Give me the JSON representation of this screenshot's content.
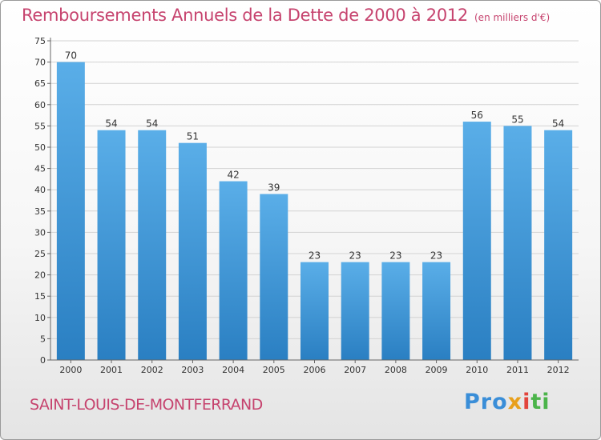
{
  "chart_data": {
    "type": "bar",
    "title": "Remboursements Annuels de la Dette de 2000 à 2012",
    "unit_note": "(en milliers d'€)",
    "categories": [
      "2000",
      "2001",
      "2002",
      "2003",
      "2004",
      "2005",
      "2006",
      "2007",
      "2008",
      "2009",
      "2010",
      "2011",
      "2012"
    ],
    "values": [
      70,
      54,
      54,
      51,
      42,
      39,
      23,
      23,
      23,
      23,
      56,
      55,
      54
    ],
    "ylim": [
      0,
      75
    ],
    "yticks": [
      0,
      5,
      10,
      15,
      20,
      25,
      30,
      35,
      40,
      45,
      50,
      55,
      60,
      65,
      70,
      75
    ],
    "grid": true,
    "bar_color_top": "#5aaee8",
    "bar_color_bottom": "#2a7fc2"
  },
  "footer": {
    "city": "SAINT-LOUIS-DE-MONTFERRAND",
    "logo": {
      "p1": "Pro",
      "p2": "x",
      "p3": "i",
      "p4": "ti"
    }
  },
  "colors": {
    "accent": "#c6436e"
  }
}
